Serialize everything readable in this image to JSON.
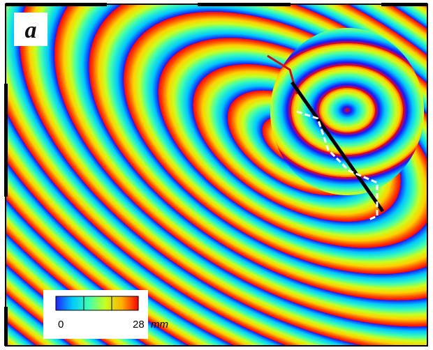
{
  "panel_label": "a",
  "colorbar": {
    "min": 0,
    "max": 28,
    "unit": "mm"
  }
}
